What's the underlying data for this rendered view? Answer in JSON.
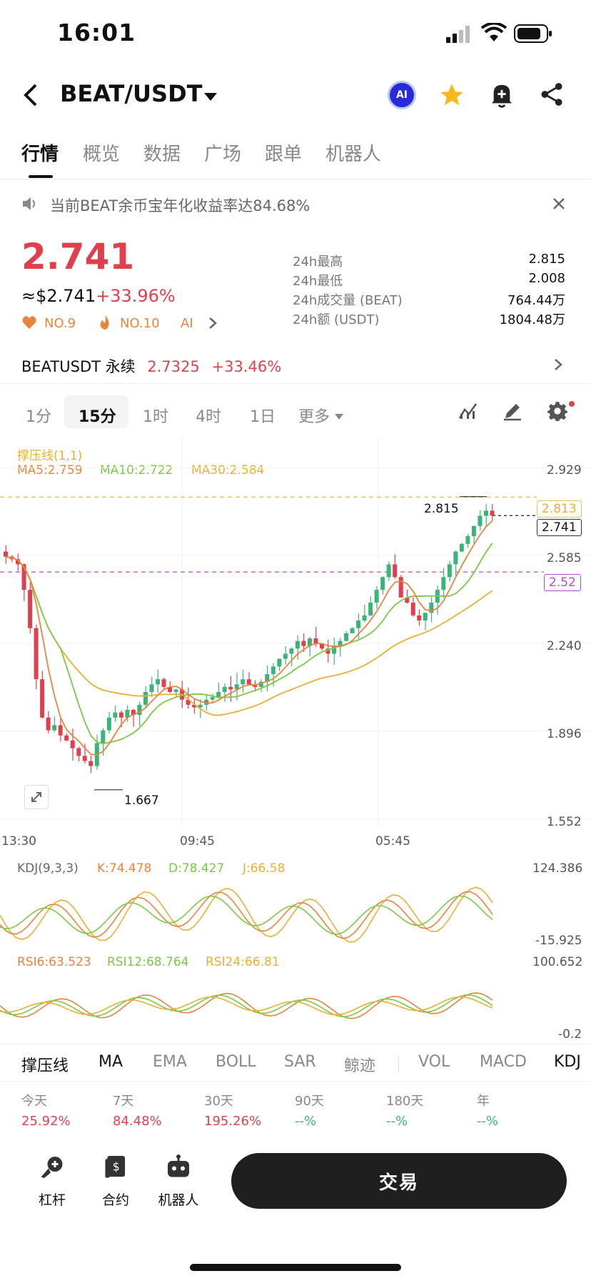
{
  "status": {
    "time": "16:01"
  },
  "header": {
    "pair": "BEAT/USDT",
    "ai_label": "AI"
  },
  "tabs": [
    "行情",
    "概览",
    "数据",
    "广场",
    "跟单",
    "机器人"
  ],
  "notice": "当前BEAT余币宝年化收益率达84.68%",
  "price": {
    "last": "2.741",
    "usd": "≈$2.741",
    "change": "+33.96%"
  },
  "ranks": {
    "r1": "NO.9",
    "r2": "NO.10",
    "ai": "AI"
  },
  "stats": [
    {
      "label": "24h最高",
      "value": "2.815"
    },
    {
      "label": "24h最低",
      "value": "2.008"
    },
    {
      "label": "24h成交量 (BEAT)",
      "value": "764.44万"
    },
    {
      "label": "24h额 (USDT)",
      "value": "1804.48万"
    }
  ],
  "perp": {
    "name": "BEATUSDT 永续",
    "price": "2.7325",
    "change": "+33.46%"
  },
  "timeframes": [
    "1分",
    "15分",
    "1时",
    "4时",
    "1日",
    "更多"
  ],
  "chart_data": {
    "type": "candlestick",
    "title": "撑压线(1,1)",
    "ma": [
      {
        "name": "MA5",
        "value": "MA5:2.759",
        "color": "#e8843b"
      },
      {
        "name": "MA10",
        "value": "MA10:2.722",
        "color": "#7ac943"
      },
      {
        "name": "MA30",
        "value": "MA30:2.584",
        "color": "#e8b030"
      }
    ],
    "y_ticks": [
      "2.929",
      "2.585",
      "2.240",
      "1.896",
      "1.552"
    ],
    "x_ticks": [
      "13:30",
      "09:45",
      "05:45"
    ],
    "ylim": [
      1.552,
      2.929
    ],
    "high_label": "2.815",
    "low_label": "1.667",
    "resist": "2.813",
    "last": "2.741",
    "support": "2.52",
    "closes": [
      2.58,
      2.57,
      2.55,
      2.45,
      2.3,
      2.1,
      1.95,
      1.9,
      1.92,
      1.88,
      1.86,
      1.83,
      1.8,
      1.78,
      1.76,
      1.85,
      1.9,
      1.95,
      1.97,
      1.95,
      1.98,
      1.96,
      2.0,
      2.05,
      2.08,
      2.1,
      2.07,
      2.05,
      2.06,
      2.02,
      2.0,
      1.99,
      2.0,
      2.02,
      2.03,
      2.05,
      2.07,
      2.06,
      2.08,
      2.1,
      2.08,
      2.07,
      2.09,
      2.12,
      2.15,
      2.18,
      2.2,
      2.22,
      2.25,
      2.23,
      2.26,
      2.24,
      2.22,
      2.2,
      2.23,
      2.25,
      2.28,
      2.3,
      2.33,
      2.35,
      2.4,
      2.45,
      2.5,
      2.55,
      2.5,
      2.42,
      2.4,
      2.35,
      2.33,
      2.36,
      2.4,
      2.45,
      2.5,
      2.55,
      2.6,
      2.63,
      2.66,
      2.7,
      2.74,
      2.76,
      2.741
    ]
  },
  "kdj": {
    "title": "KDJ(9,3,3)",
    "k": "K:74.478",
    "d": "D:78.427",
    "j": "J:66.58",
    "top": "124.386",
    "bottom": "-15.925"
  },
  "rsi": {
    "r6": "RSI6:63.523",
    "r12": "RSI12:68.764",
    "r24": "RSI24:66.81",
    "top": "100.652",
    "bottom": "-0.2"
  },
  "indicator_tabs": [
    "撑压线",
    "MA",
    "EMA",
    "BOLL",
    "SAR",
    "鲸迹",
    "VOL",
    "MACD",
    "KDJ"
  ],
  "performance": [
    {
      "label": "今天",
      "value": "25.92%"
    },
    {
      "label": "7天",
      "value": "84.48%"
    },
    {
      "label": "30天",
      "value": "195.26%"
    },
    {
      "label": "90天",
      "value": "--%"
    },
    {
      "label": "180天",
      "value": "--%"
    },
    {
      "label": "年",
      "value": "--%"
    }
  ],
  "bottom": {
    "leverage": "杠杆",
    "contract": "合约",
    "bot": "机器人",
    "trade": "交易"
  }
}
